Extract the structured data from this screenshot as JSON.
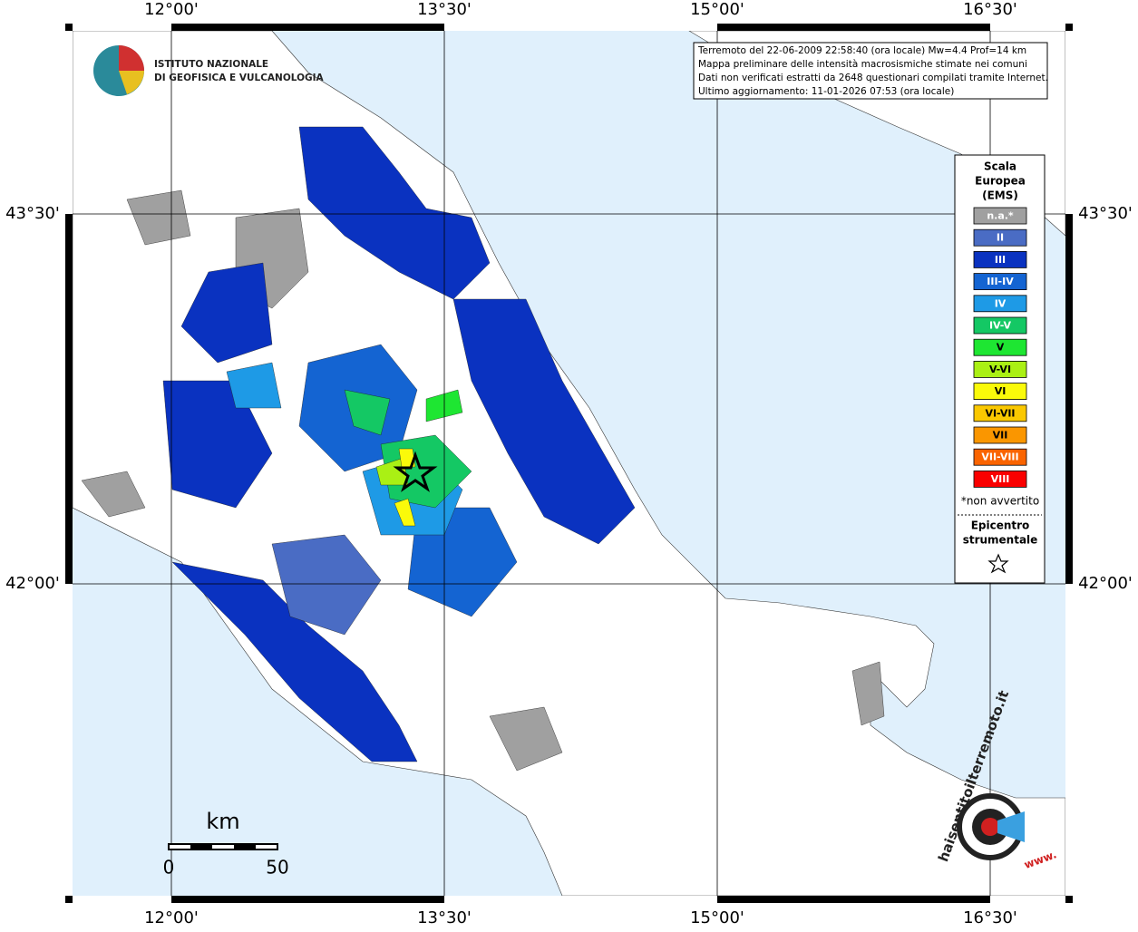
{
  "map": {
    "lon_labels": [
      "12°00'",
      "13°30'",
      "15°00'",
      "16°30'"
    ],
    "lat_labels": [
      "43°30'",
      "42°00'"
    ],
    "info": [
      "Terremoto del 22-06-2009 22:58:40 (ora locale) Mw=4.4 Prof=14 km",
      "Mappa preliminare delle intensità macrosismiche stimate nei comuni",
      "Dati non verificati estratti da 2648 questionari compilati tramite Internet.",
      "Ultimo aggiornamento: 11-01-2026 07:53 (ora locale)"
    ],
    "logo": [
      "ISTITUTO NAZIONALE",
      "DI GEOFISICA E VULCANOLOGIA"
    ],
    "legend": {
      "title": [
        "Scala",
        "Europea",
        "(EMS)"
      ],
      "items": [
        {
          "label": "n.a.*",
          "color": "#a0a0a0"
        },
        {
          "label": "II",
          "color": "#4a6cc4"
        },
        {
          "label": "III",
          "color": "#0a32c0"
        },
        {
          "label": "III-IV",
          "color": "#1464d2"
        },
        {
          "label": "IV",
          "color": "#1e9ae6"
        },
        {
          "label": "IV-V",
          "color": "#14c864"
        },
        {
          "label": "V",
          "color": "#1ee632"
        },
        {
          "label": "V-VI",
          "color": "#aaf014"
        },
        {
          "label": "VI",
          "color": "#fafa0a"
        },
        {
          "label": "VI-VII",
          "color": "#fac800"
        },
        {
          "label": "VII",
          "color": "#fa9600"
        },
        {
          "label": "VII-VIII",
          "color": "#fa6400"
        },
        {
          "label": "VIII",
          "color": "#fa0000"
        }
      ],
      "note": "*non avvertito",
      "epicenter": [
        "Epicentro",
        "strumentale"
      ]
    },
    "scale": {
      "unit": "km",
      "ticks": [
        0,
        50
      ]
    },
    "watermark": [
      "haisentitoilterremoto.it",
      "www."
    ]
  }
}
